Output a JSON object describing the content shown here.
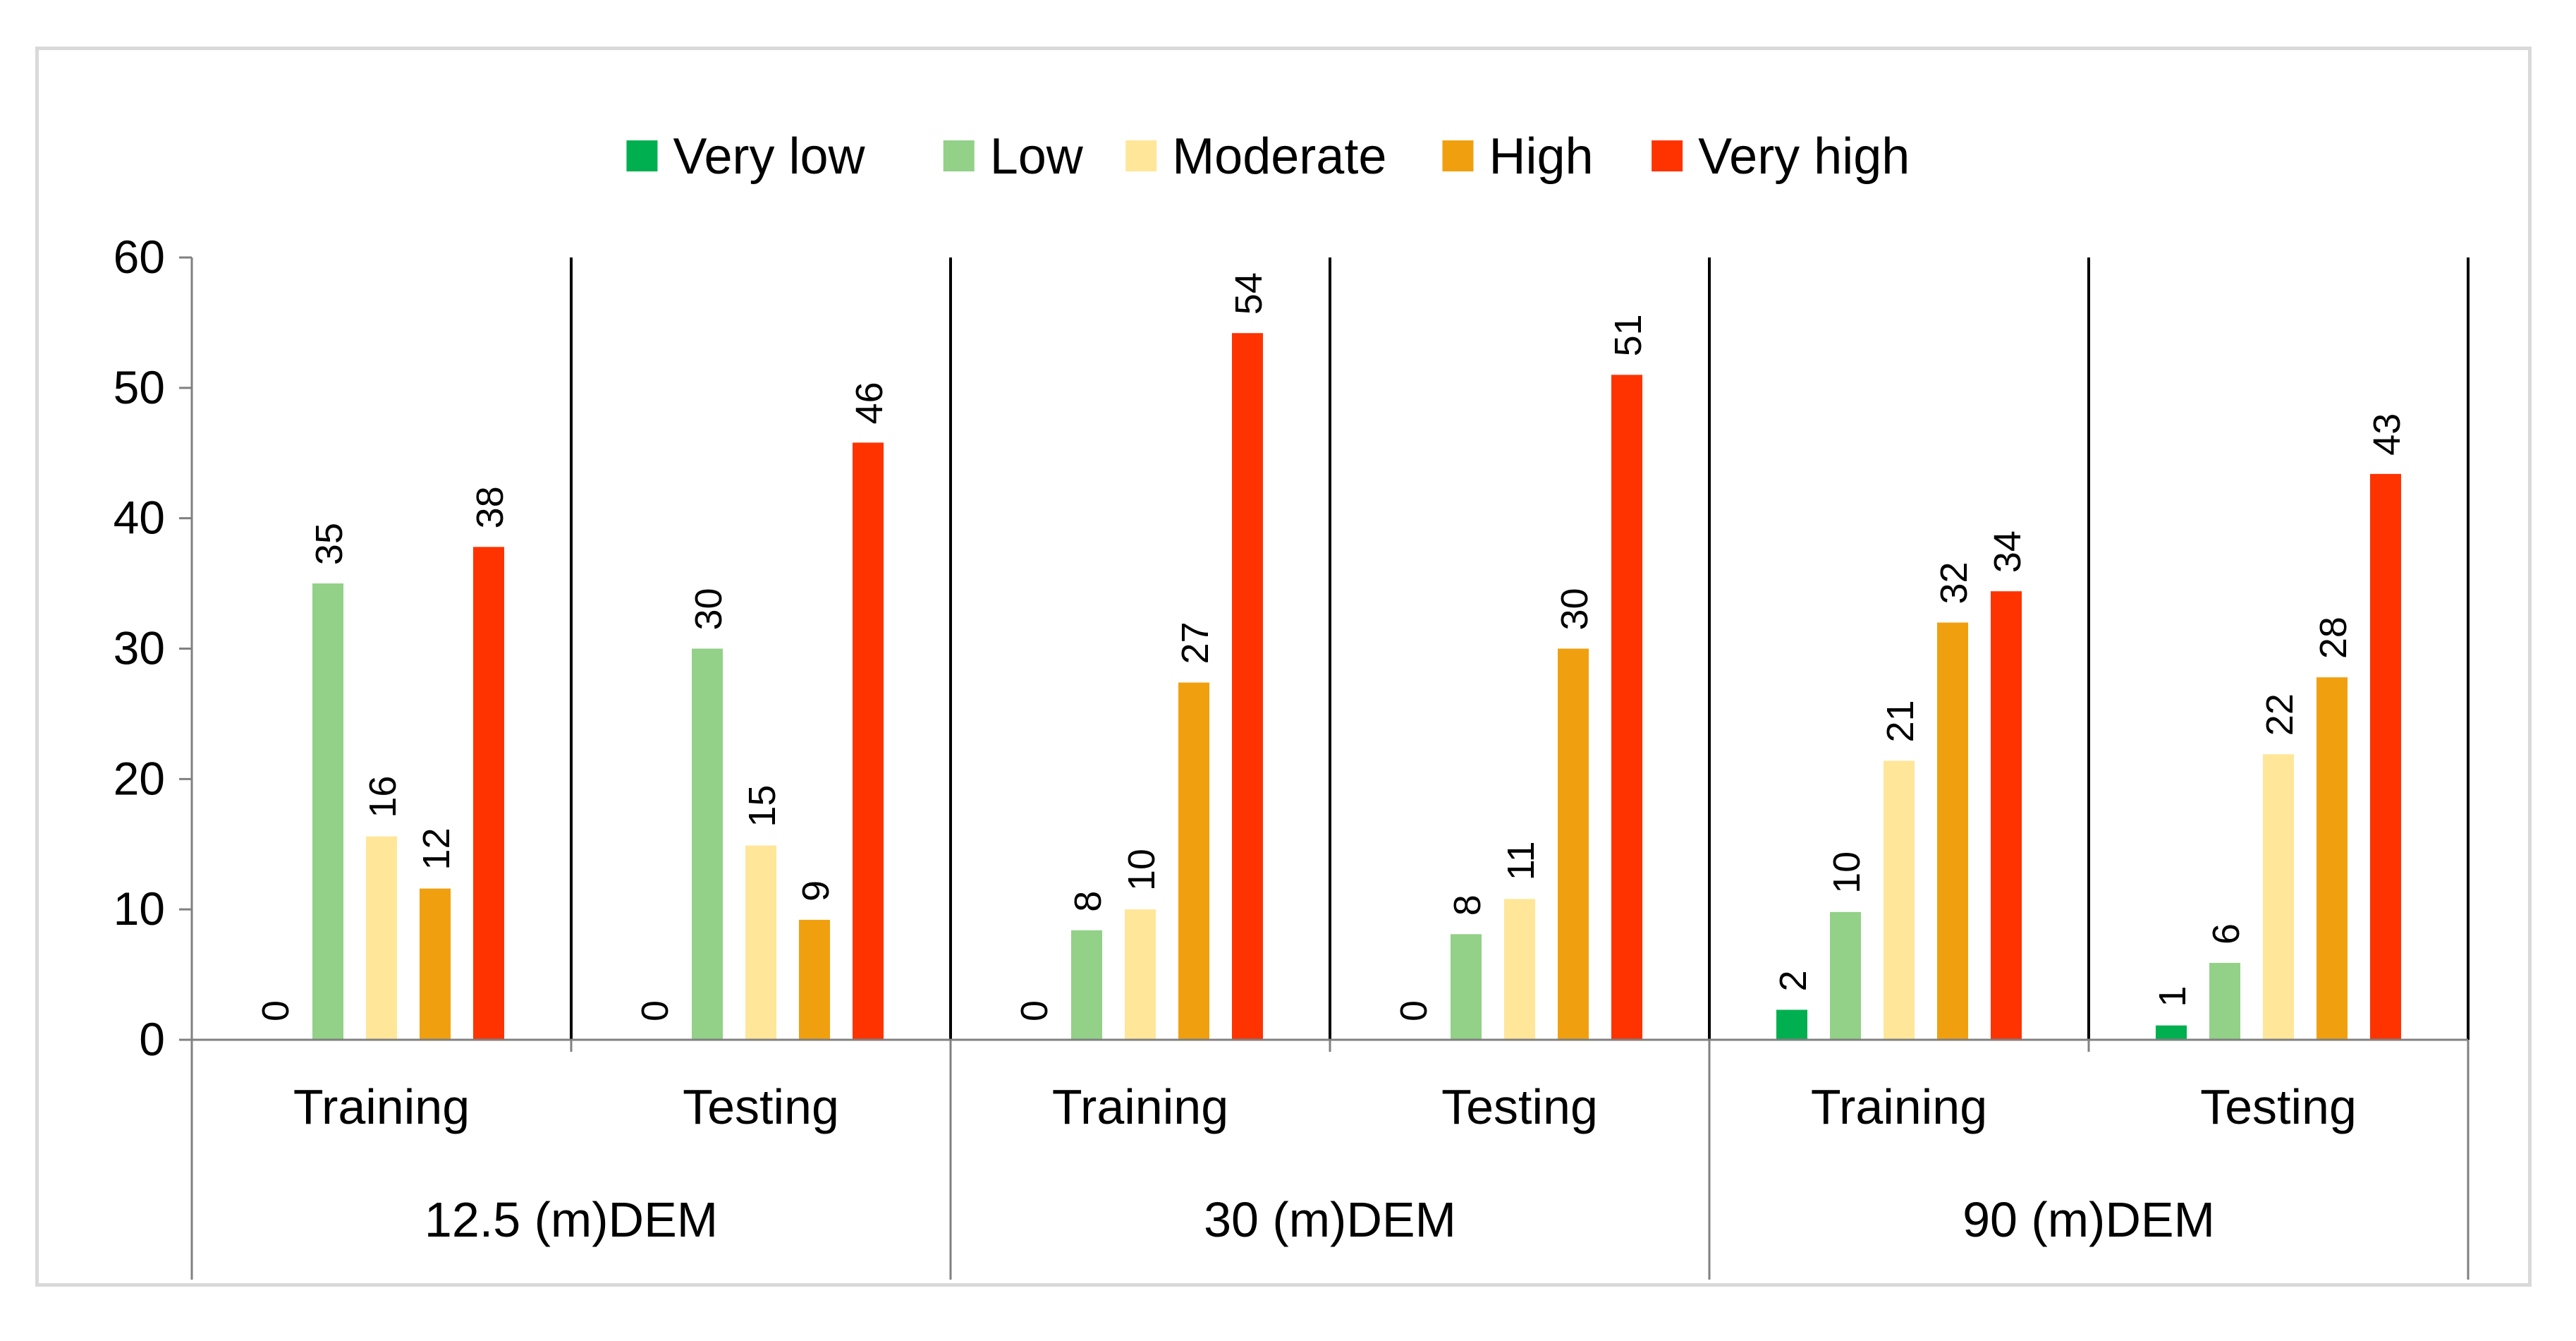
{
  "chart_data": {
    "type": "bar",
    "title": "",
    "xlabel": "",
    "ylabel": "",
    "ylim": [
      0,
      60
    ],
    "yticks": [
      0,
      10,
      20,
      30,
      40,
      50,
      60
    ],
    "legend_position": "top",
    "groups": [
      {
        "label": "12.5 (m)DEM",
        "categories": [
          "Training",
          "Testing"
        ]
      },
      {
        "label": "30 (m)DEM",
        "categories": [
          "Training",
          "Testing"
        ]
      },
      {
        "label": "90 (m)DEM",
        "categories": [
          "Training",
          "Testing"
        ]
      }
    ],
    "categories": [
      "12.5 (m)DEM - Training",
      "12.5 (m)DEM - Testing",
      "30 (m)DEM - Training",
      "30 (m)DEM - Testing",
      "90 (m)DEM - Training",
      "90 (m)DEM - Testing"
    ],
    "series": [
      {
        "name": "Very low",
        "color": "#00b050",
        "values": [
          0,
          0,
          0,
          0,
          2.3,
          1.1
        ],
        "labels": [
          "0",
          "0",
          "0",
          "0",
          "2",
          "1"
        ]
      },
      {
        "name": "Low",
        "color": "#92d187",
        "values": [
          35,
          30,
          8.4,
          8.1,
          9.8,
          5.9
        ],
        "labels": [
          "35",
          "30",
          "8",
          "8",
          "10",
          "6"
        ]
      },
      {
        "name": "Moderate",
        "color": "#ffe699",
        "values": [
          15.6,
          14.9,
          10,
          10.8,
          21.4,
          21.9
        ],
        "labels": [
          "16",
          "15",
          "10",
          "11",
          "21",
          "22"
        ]
      },
      {
        "name": "High",
        "color": "#f0a00f",
        "values": [
          11.6,
          9.2,
          27.4,
          30,
          32,
          27.8
        ],
        "labels": [
          "12",
          "9",
          "27",
          "30",
          "32",
          "28"
        ]
      },
      {
        "name": "Very high",
        "color": "#ff3300",
        "values": [
          37.8,
          45.8,
          54.2,
          51,
          34.4,
          43.4
        ],
        "labels": [
          "38",
          "46",
          "54",
          "51",
          "34",
          "43"
        ]
      }
    ]
  }
}
